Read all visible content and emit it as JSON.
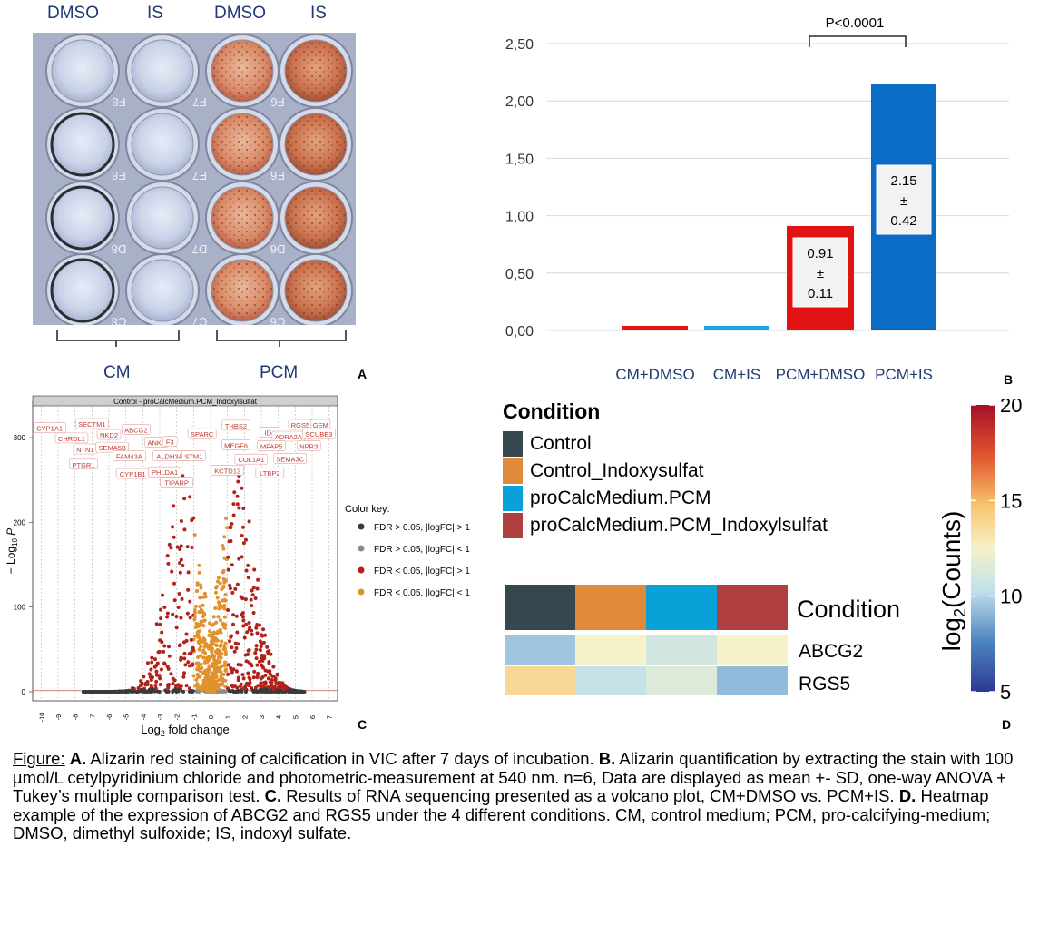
{
  "panel_a": {
    "col_labels": [
      "DMSO",
      "IS",
      "DMSO",
      "IS"
    ],
    "group_labels": [
      "CM",
      "PCM"
    ],
    "well_ids": [
      [
        "F8",
        "F7",
        "F6"
      ],
      [
        "E8",
        "E7",
        "E6"
      ],
      [
        "D8",
        "D7",
        "D6"
      ],
      [
        "C8",
        "C7",
        "C6"
      ]
    ],
    "letter": "A"
  },
  "panel_b": {
    "letter": "B",
    "significance": "P<0.0001",
    "bar_labels": [
      {
        "value": "0.91",
        "pm": "±",
        "sd": "0.11"
      },
      {
        "value": "2.15",
        "pm": "±",
        "sd": "0.42"
      }
    ]
  },
  "chart_data": [
    {
      "type": "bar",
      "categories": [
        "CM+DMSO",
        "CM+IS",
        "PCM+DMSO",
        "PCM+IS"
      ],
      "values": [
        0.04,
        0.04,
        0.91,
        2.15
      ],
      "sd": [
        null,
        null,
        0.11,
        0.42
      ],
      "colors": [
        "#e41313",
        "#1aa7e8",
        "#e41313",
        "#0a6cc4"
      ],
      "bar_styles": [
        "solid",
        "solid",
        "outlined-white-fill-red",
        "solid"
      ],
      "yticks": [
        "0,00",
        "0,50",
        "1,00",
        "1,50",
        "2,00",
        "2,50"
      ],
      "ylim": [
        0,
        2.5
      ],
      "grid": true
    },
    {
      "type": "scatter",
      "title": "Control - proCalcMedium.PCM_Indoxylsulfat",
      "xlabel": "Log2 fold change",
      "ylabel": "-Log10 P",
      "xlim": [
        -10.5,
        7.5
      ],
      "ylim": [
        0,
        330
      ],
      "xticks": [
        "-10",
        "-9",
        "-8",
        "-7",
        "-6",
        "-5",
        "-4",
        "-3",
        "-2",
        "-1",
        "0",
        "1",
        "2",
        "3",
        "4",
        "5",
        "6",
        "7"
      ],
      "yticks": [
        "0",
        "100",
        "200",
        "300"
      ],
      "legend_title": "Color key:",
      "legend": [
        {
          "label": "FDR > 0.05, |logFC| > 1",
          "color": "#3a3a3a"
        },
        {
          "label": "FDR > 0.05, |logFC| < 1",
          "color": "#8a8a8a"
        },
        {
          "label": "FDR < 0.05, |logFC| > 1",
          "color": "#b2211b"
        },
        {
          "label": "FDR < 0.05, |logFC| < 1",
          "color": "#e0922f"
        }
      ],
      "gene_labels": [
        {
          "name": "CYP1A1",
          "x": -9.5,
          "y": 310
        },
        {
          "name": "SECTM1",
          "x": -7.0,
          "y": 315
        },
        {
          "name": "ABCG2",
          "x": -4.4,
          "y": 308
        },
        {
          "name": "CHRDL1",
          "x": -8.2,
          "y": 298
        },
        {
          "name": "NKD2",
          "x": -6.0,
          "y": 302
        },
        {
          "name": "NTN1",
          "x": -7.4,
          "y": 285
        },
        {
          "name": "SEMA5B",
          "x": -5.8,
          "y": 287
        },
        {
          "name": "ANK2",
          "x": -3.2,
          "y": 293
        },
        {
          "name": "F3",
          "x": -2.4,
          "y": 294
        },
        {
          "name": "FAM43A",
          "x": -4.8,
          "y": 277
        },
        {
          "name": "ALDH3A1",
          "x": -2.3,
          "y": 277
        },
        {
          "name": "STM1",
          "x": -1.0,
          "y": 277
        },
        {
          "name": "PTGR1",
          "x": -7.5,
          "y": 267
        },
        {
          "name": "CYP1B1",
          "x": -4.6,
          "y": 256
        },
        {
          "name": "PHLDA1",
          "x": -2.7,
          "y": 258
        },
        {
          "name": "TIPARP",
          "x": -2.0,
          "y": 246
        },
        {
          "name": "SPARC",
          "x": -0.5,
          "y": 303
        },
        {
          "name": "THBS2",
          "x": 1.5,
          "y": 313
        },
        {
          "name": "ID4",
          "x": 3.5,
          "y": 305
        },
        {
          "name": "RGS5",
          "x": 5.3,
          "y": 314
        },
        {
          "name": "GEM",
          "x": 6.5,
          "y": 314
        },
        {
          "name": "ADRA2A",
          "x": 4.6,
          "y": 300
        },
        {
          "name": "SCUBE3",
          "x": 6.4,
          "y": 303
        },
        {
          "name": "MEGF6",
          "x": 1.5,
          "y": 290
        },
        {
          "name": "MFAP5",
          "x": 3.6,
          "y": 289
        },
        {
          "name": "NPR3",
          "x": 5.8,
          "y": 289
        },
        {
          "name": "COL1A1",
          "x": 2.4,
          "y": 273
        },
        {
          "name": "SEMA3C",
          "x": 4.7,
          "y": 274
        },
        {
          "name": "KCTD12",
          "x": 1.0,
          "y": 260
        },
        {
          "name": "LTBP2",
          "x": 3.5,
          "y": 257
        }
      ]
    },
    {
      "type": "heatmap",
      "conditions": [
        "Control",
        "Control_Indoxysulfat",
        "proCalcMedium.PCM",
        "proCalcMedium.PCM_Indoxylsulfat"
      ],
      "condition_colors": [
        "#37474f",
        "#e08a3c",
        "#0aa0d8",
        "#b0403f"
      ],
      "genes": [
        "ABCG2",
        "RGS5"
      ],
      "values": [
        [
          9.5,
          12.5,
          11.0,
          12.5
        ],
        [
          13.8,
          10.5,
          11.5,
          9.2
        ]
      ],
      "colorbar_label": "log2(Counts)",
      "colorbar_ticks": [
        "5",
        "10",
        "15",
        "20"
      ],
      "colorbar_range": [
        5,
        20
      ]
    }
  ],
  "panel_c": {
    "letter": "C"
  },
  "panel_d": {
    "letter": "D",
    "legend_title": "Condition",
    "row_label_condition": "Condition",
    "colorbar_title_main": "log",
    "colorbar_title_sub": "2",
    "colorbar_title_rest": "(Counts)"
  },
  "caption": {
    "lead": "Figure:",
    "parts": [
      {
        "bold": "A.",
        "text": " Alizarin red staining of calcification in VIC after 7 days of incubation. "
      },
      {
        "bold": "B.",
        "text": " Alizarin quantification by extracting the stain with 100 µmol/L cetylpyridinium chloride and photometric-measurement at 540 nm. n=6, Data are displayed as mean +- SD, one-way ANOVA + Tukey’s multiple comparison test. "
      },
      {
        "bold": "C.",
        "text": " Results of RNA sequencing presented as a volcano plot, CM+DMSO vs. PCM+IS. "
      },
      {
        "bold": "D.",
        "text": " Heatmap example of the expression of ABCG2 and RGS5 under the 4 different conditions. CM, control medium; PCM, pro-calcifying-medium; DMSO, dimethyl sulfoxide; IS, indoxyl sulfate."
      }
    ]
  }
}
